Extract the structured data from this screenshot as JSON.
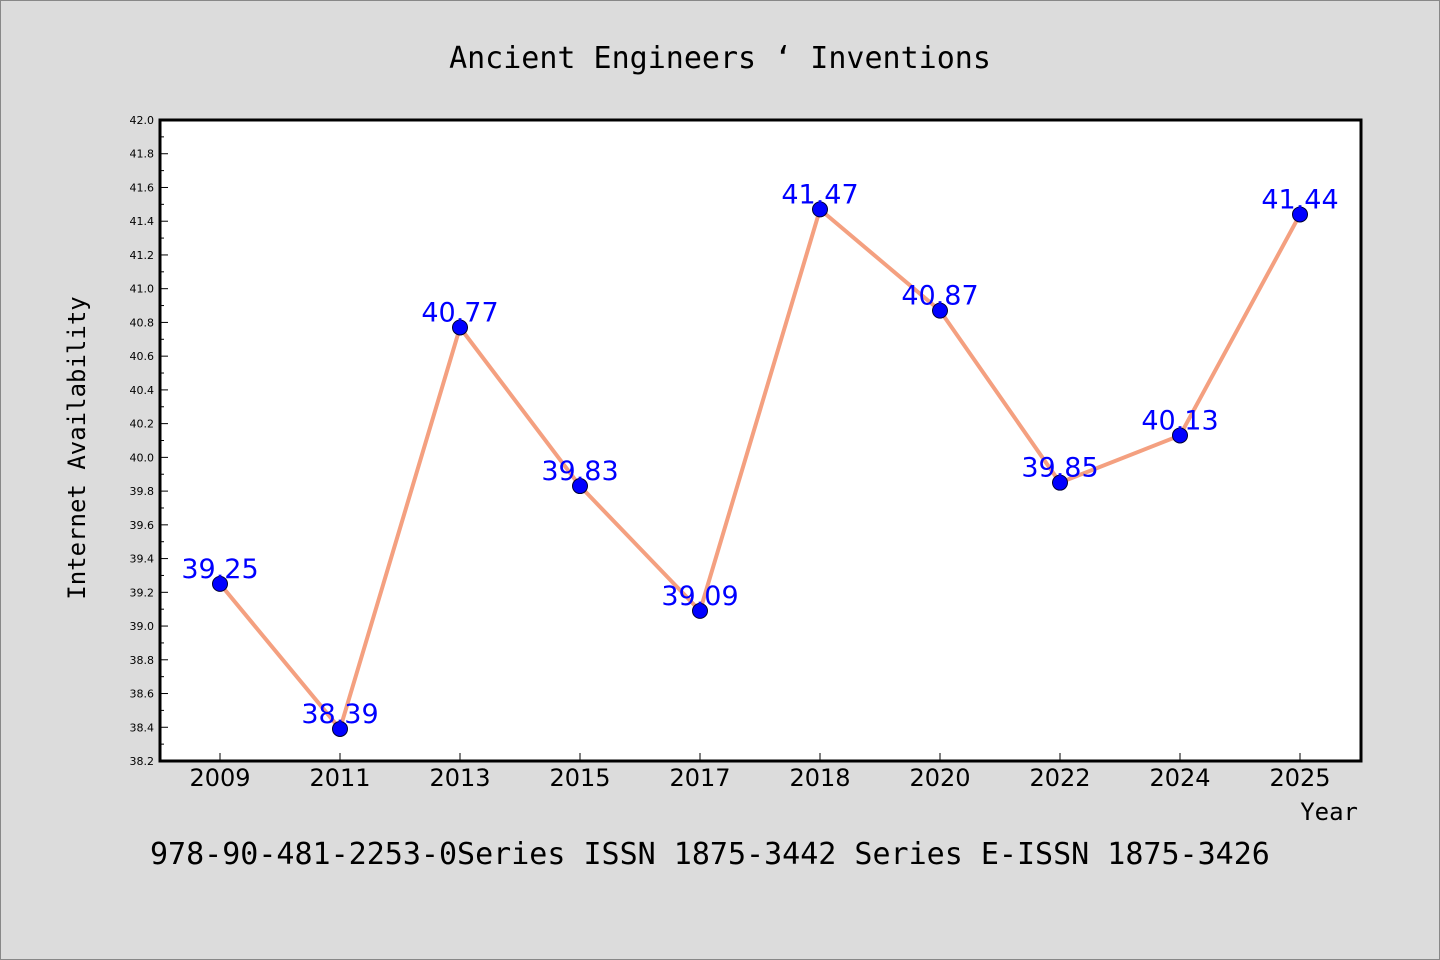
{
  "chart_data": {
    "type": "line",
    "title": "Ancient Engineers ‘ Inventions",
    "xlabel": "Year",
    "ylabel": "Internet Availability",
    "categories": [
      "2009",
      "2011",
      "2013",
      "2015",
      "2017",
      "2018",
      "2020",
      "2022",
      "2024",
      "2025"
    ],
    "values": [
      39.25,
      38.39,
      40.77,
      39.83,
      39.09,
      41.47,
      40.87,
      39.85,
      40.13,
      41.44
    ],
    "data_labels": [
      "39.25",
      "38.39",
      "40.77",
      "39.83",
      "39.09",
      "41.47",
      "40.87",
      "39.85",
      "40.13",
      "41.44"
    ],
    "ylim": [
      38.2,
      42.0
    ],
    "yticks": [
      "38.2",
      "38.4",
      "38.6",
      "38.8",
      "39.0",
      "39.2",
      "39.4",
      "39.6",
      "39.8",
      "40.0",
      "40.2",
      "40.4",
      "40.6",
      "40.8",
      "41.0",
      "41.2",
      "41.4",
      "41.6",
      "41.8",
      "42.0"
    ],
    "line_color": "#f4a080",
    "marker_color": "#0000ff",
    "label_color": "#0000ff",
    "grid": false,
    "legend": "none"
  },
  "footer_text": "978-90-481-2253-0Series ISSN 1875-3442 Series E-ISSN 1875-3426"
}
